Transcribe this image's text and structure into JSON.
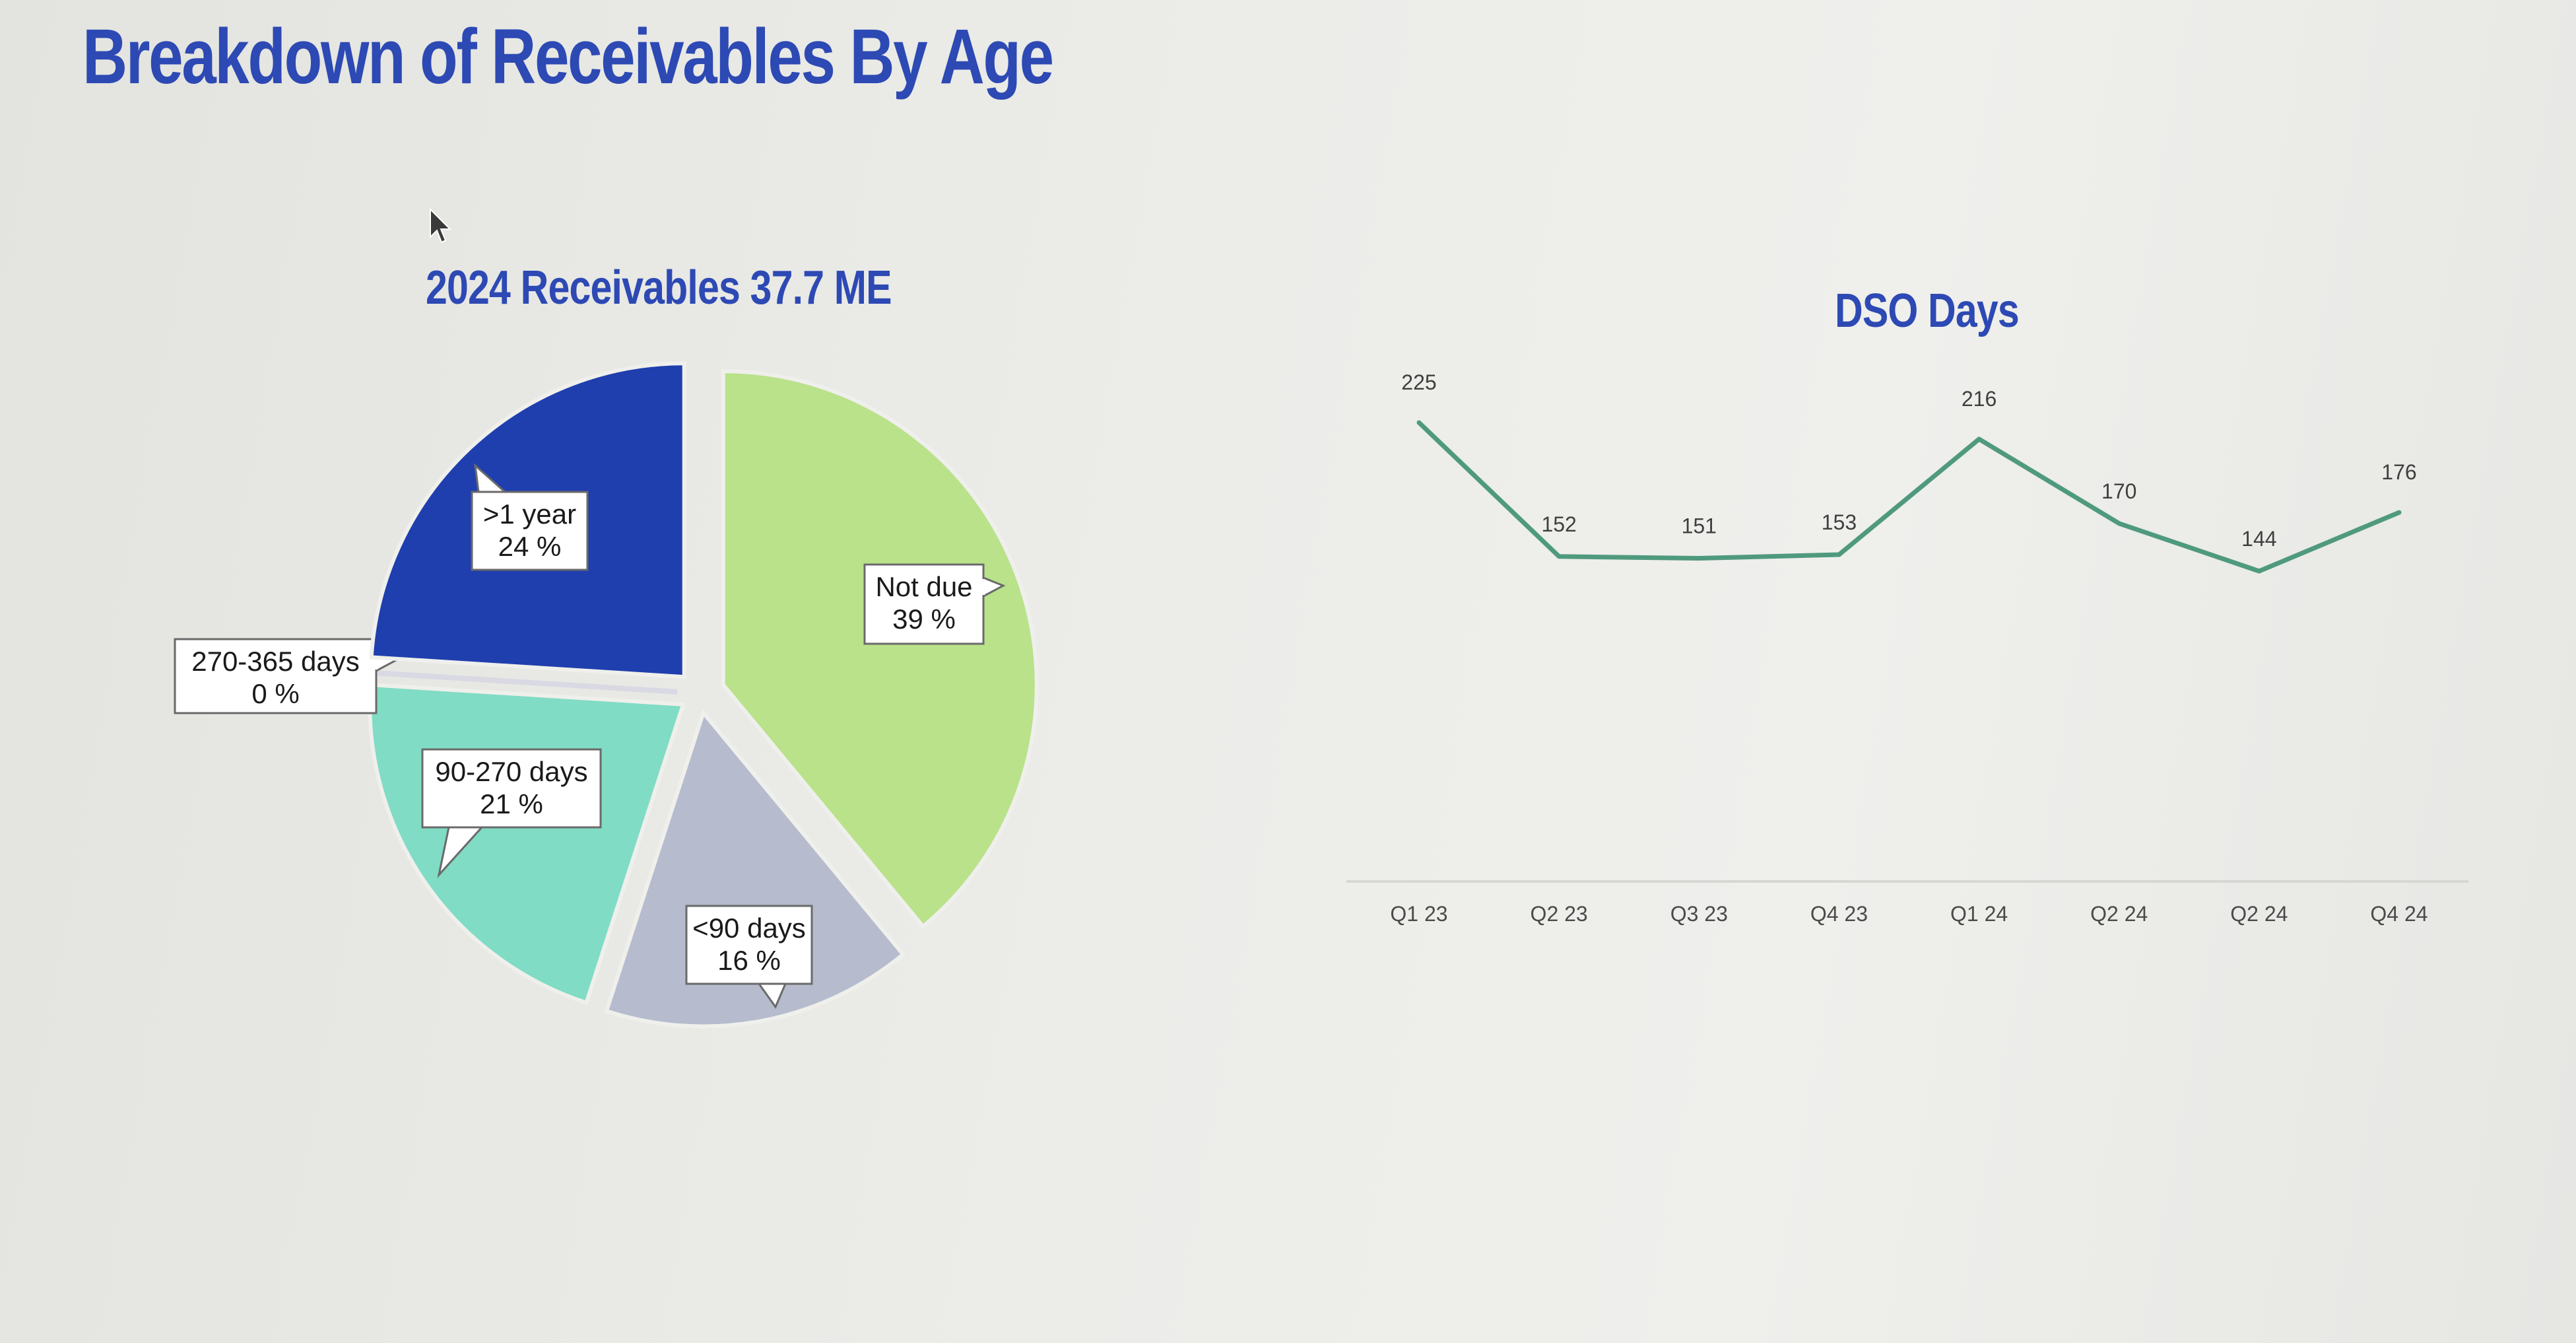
{
  "page": {
    "title": "Breakdown of Receivables By Age",
    "title_color": "#2d49b4"
  },
  "chart_data": [
    {
      "type": "pie",
      "title": "2024 Receivables 37.7 ME",
      "title_color": "#2d49b4",
      "slices": [
        {
          "label": "Not due",
          "value": 39,
          "value_text": "39 %",
          "color": "#b9e28a"
        },
        {
          "label": "<90 days",
          "value": 16,
          "value_text": "16 %",
          "color": "#b6bccd"
        },
        {
          "label": "90-270 days",
          "value": 21,
          "value_text": "21 %",
          "color": "#80dcc4"
        },
        {
          "label": "270-365 days",
          "value": 0,
          "value_text": "0 %",
          "color": "#d9d9e3"
        },
        {
          "label": ">1 year",
          "value": 24,
          "value_text": "24 %",
          "color": "#1f3fae"
        }
      ]
    },
    {
      "type": "line",
      "title": "DSO Days",
      "title_color": "#2d49b4",
      "line_color": "#4f9a7e",
      "categories": [
        "Q1 23",
        "Q2 23",
        "Q3 23",
        "Q4 23",
        "Q1 24",
        "Q2 24",
        "Q2 24",
        "Q4 24"
      ],
      "values": [
        225,
        152,
        151,
        153,
        216,
        170,
        144,
        176
      ],
      "grid": false
    }
  ]
}
